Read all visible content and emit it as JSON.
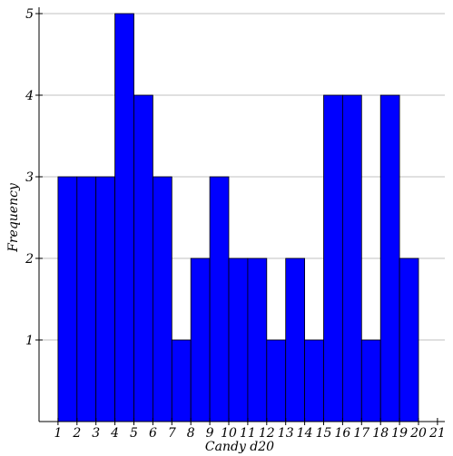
{
  "chart_data": {
    "type": "bar",
    "subtype": "histogram",
    "bins": [
      1,
      2,
      3,
      4,
      5,
      6,
      7,
      8,
      9,
      10,
      11,
      12,
      13,
      14,
      15,
      16,
      17,
      18,
      19,
      20
    ],
    "values": [
      3,
      3,
      3,
      5,
      4,
      3,
      1,
      2,
      3,
      2,
      2,
      1,
      2,
      1,
      4,
      4,
      1,
      4,
      2,
      0
    ],
    "xlabel": "Candy d20",
    "ylabel": "Frequency",
    "xlim": [
      0,
      21
    ],
    "ylim": [
      0,
      5
    ],
    "x_ticks": [
      1,
      2,
      3,
      4,
      5,
      6,
      7,
      8,
      9,
      10,
      11,
      12,
      13,
      14,
      15,
      16,
      17,
      18,
      19,
      20,
      21
    ],
    "y_ticks": [
      1,
      2,
      3,
      4,
      5
    ],
    "grid": "horizontal",
    "bar_color": "#0000ff",
    "bar_edge_color": "#000000",
    "grid_color": "#c0c0c0"
  }
}
